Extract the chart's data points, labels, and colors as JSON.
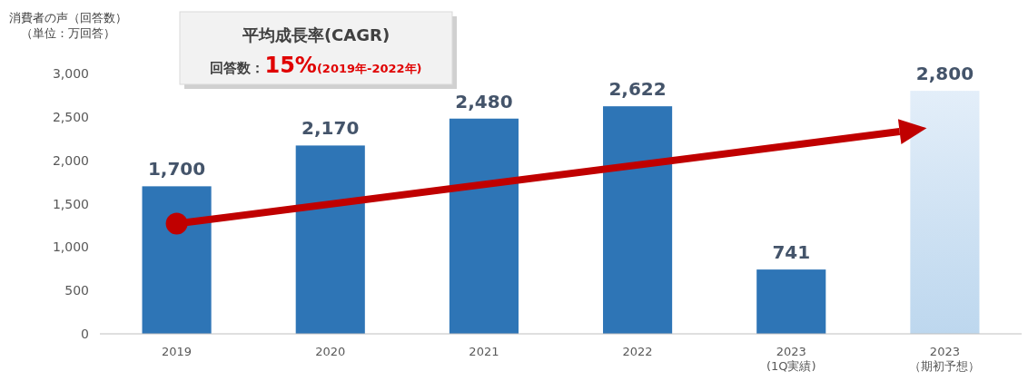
{
  "chart_data": {
    "type": "bar",
    "ylabel": "消費者の声（回答数）",
    "categories": [
      "2019",
      "2020",
      "2021",
      "2022",
      "2023\n(1Q実績)",
      "2023\n（期初予想）"
    ],
    "values": [
      1700,
      2170,
      2480,
      2622,
      741,
      2800
    ],
    "colors": [
      "#2e75b6",
      "#2e75b6",
      "#2e75b6",
      "#2e75b6",
      "#2e75b6",
      "#bdd7ee"
    ],
    "ylim": [
      0,
      3000
    ],
    "yticks": [
      {
        "value": 0,
        "label": "0"
      },
      {
        "value": 500,
        "label": "500"
      },
      {
        "value": 1000,
        "label": "1,000"
      },
      {
        "value": 1500,
        "label": "1,500"
      },
      {
        "value": 2000,
        "label": "2,000"
      },
      {
        "value": 2500,
        "label": "2,500"
      },
      {
        "value": 3000,
        "label": "3,000"
      }
    ],
    "value_labels": [
      "1,700",
      "2,170",
      "2,480",
      "2,622",
      "741",
      "2,800"
    ],
    "grid": false,
    "annotations": [
      "平均成長率(CAGR)",
      "回答数：15%(2019年-2022年)",
      "（単位：万回答）"
    ]
  }
}
